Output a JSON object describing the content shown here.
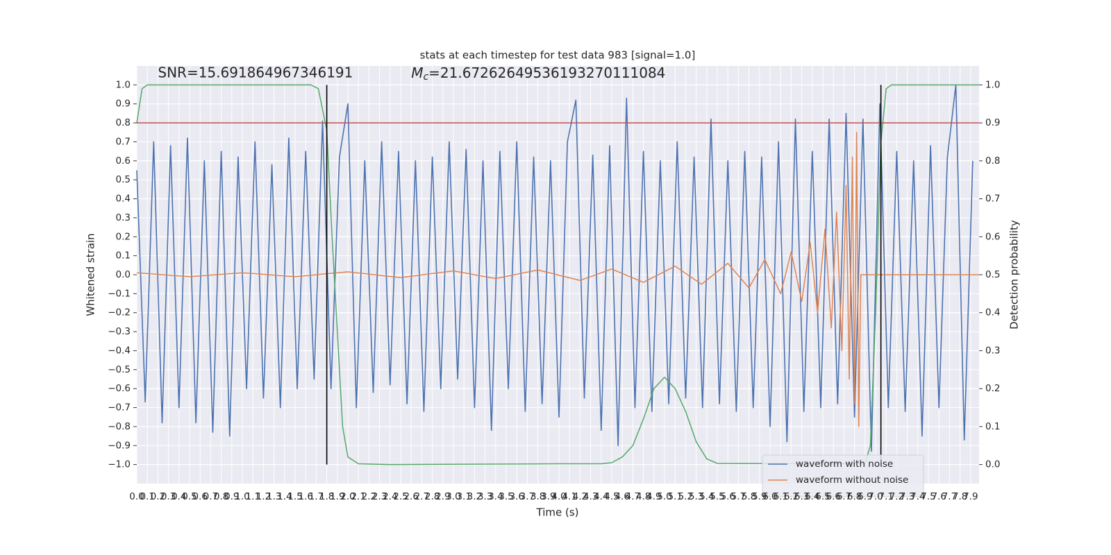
{
  "chart_data": {
    "type": "line",
    "title": "stats at each timestep for test data 983 [signal=1.0]",
    "x_label": "Time (s)",
    "y_label": "Whitened strain",
    "y2_label": "Detection probability",
    "annotations": [
      {
        "text": "SNR=15.691864967346191",
        "x": 0.2,
        "y": 1.06
      },
      {
        "symbol": "M",
        "subscript": "c",
        "text": "=21.67262649536193270111084",
        "x": 2.6,
        "y": 1.06
      }
    ],
    "xlim": [
      0,
      7.98
    ],
    "ylim": [
      -1.1,
      1.1
    ],
    "y2lim": [
      -0.05,
      1.05
    ],
    "grid": true,
    "legend": "lower right",
    "xticks": [
      {
        "value": 0,
        "label": "0.0"
      },
      0.1,
      0.2,
      0.3,
      0.4,
      0.5,
      0.6,
      0.7,
      0.8,
      0.9,
      {
        "value": 1,
        "label": "1.0"
      },
      1.1,
      1.2,
      1.3,
      1.4,
      1.5,
      1.6,
      1.7,
      1.8,
      1.9,
      {
        "value": 2,
        "label": "2.0"
      },
      2.1,
      2.2,
      2.3,
      2.4,
      2.5,
      2.6,
      2.7,
      2.8,
      2.9,
      {
        "value": 3,
        "label": "3.0"
      },
      3.1,
      3.2,
      3.3,
      3.4,
      3.5,
      3.6,
      3.7,
      3.8,
      3.9,
      {
        "value": 4,
        "label": "4.0"
      },
      4.1,
      4.2,
      4.3,
      4.4,
      4.5,
      4.6,
      4.7,
      4.8,
      4.9,
      {
        "value": 5,
        "label": "5.0"
      },
      5.1,
      5.2,
      5.3,
      5.4,
      5.5,
      5.6,
      5.7,
      5.8,
      5.9,
      {
        "value": 6,
        "label": "6.0"
      },
      6.1,
      6.2,
      6.3,
      6.4,
      6.5,
      6.6,
      6.7,
      6.8,
      6.9,
      {
        "value": 7,
        "label": "7.0"
      },
      7.1,
      7.2,
      7.3,
      7.4,
      7.5,
      7.6,
      7.7,
      7.8,
      7.9
    ],
    "yticks": [
      {
        "value": -1,
        "label": "−1.0"
      },
      {
        "value": -0.9,
        "label": "−0.9"
      },
      {
        "value": -0.8,
        "label": "−0.8"
      },
      {
        "value": -0.7,
        "label": "−0.7"
      },
      {
        "value": -0.6,
        "label": "−0.6"
      },
      {
        "value": -0.5,
        "label": "−0.5"
      },
      {
        "value": -0.4,
        "label": "−0.4"
      },
      {
        "value": -0.3,
        "label": "−0.3"
      },
      {
        "value": -0.2,
        "label": "−0.2"
      },
      {
        "value": -0.1,
        "label": "−0.1"
      },
      {
        "value": 0,
        "label": "0.0"
      },
      0.1,
      0.2,
      0.3,
      0.4,
      0.5,
      0.6,
      0.7,
      0.8,
      0.9,
      {
        "value": 1,
        "label": "1.0"
      }
    ],
    "y2ticks": [
      {
        "value": 0,
        "label": "0.0"
      },
      0.1,
      0.2,
      0.3,
      0.4,
      0.5,
      0.6,
      0.7,
      0.8,
      0.9,
      {
        "value": 1,
        "label": "1.0"
      }
    ],
    "hline": {
      "y": 0.8,
      "color": "#c44e52"
    },
    "vlines": {
      "x": [
        1.8,
        7.05
      ],
      "ymin": -1,
      "ymax": 1,
      "color": "#000000"
    },
    "series": [
      {
        "name": "waveform with noise",
        "color": "#4c72b0",
        "x": [
          0,
          0.08,
          0.16,
          0.24,
          0.32,
          0.4,
          0.48,
          0.56,
          0.64,
          0.72,
          0.8,
          0.88,
          0.96,
          1.04,
          1.12,
          1.2,
          1.28,
          1.36,
          1.44,
          1.52,
          1.6,
          1.68,
          1.76,
          1.84,
          1.92,
          2,
          2.08,
          2.16,
          2.24,
          2.32,
          2.4,
          2.48,
          2.56,
          2.64,
          2.72,
          2.8,
          2.88,
          2.96,
          3.04,
          3.12,
          3.2,
          3.28,
          3.36,
          3.44,
          3.52,
          3.6,
          3.68,
          3.76,
          3.84,
          3.92,
          4,
          4.08,
          4.16,
          4.24,
          4.32,
          4.4,
          4.48,
          4.56,
          4.64,
          4.72,
          4.8,
          4.88,
          4.96,
          5.04,
          5.12,
          5.2,
          5.28,
          5.36,
          5.44,
          5.52,
          5.6,
          5.68,
          5.76,
          5.84,
          5.92,
          6,
          6.08,
          6.16,
          6.24,
          6.32,
          6.4,
          6.48,
          6.56,
          6.64,
          6.72,
          6.8,
          6.88,
          6.96,
          7.04,
          7.12,
          7.2,
          7.28,
          7.36,
          7.44,
          7.52,
          7.6,
          7.68,
          7.76,
          7.84,
          7.92
        ],
        "values": [
          0.55,
          -0.67,
          0.7,
          -0.78,
          0.68,
          -0.7,
          0.72,
          -0.78,
          0.6,
          -0.83,
          0.65,
          -0.85,
          0.62,
          -0.6,
          0.7,
          -0.65,
          0.58,
          -0.7,
          0.72,
          -0.6,
          0.65,
          -0.55,
          0.81,
          -0.6,
          0.62,
          0.9,
          -0.7,
          0.6,
          -0.62,
          0.7,
          -0.58,
          0.65,
          -0.68,
          0.6,
          -0.72,
          0.62,
          -0.6,
          0.7,
          -0.55,
          0.66,
          -0.7,
          0.6,
          -0.82,
          0.65,
          -0.6,
          0.7,
          -0.72,
          0.62,
          -0.68,
          0.6,
          -0.75,
          0.7,
          0.92,
          -0.65,
          0.63,
          -0.82,
          0.68,
          -0.9,
          0.93,
          -0.7,
          0.65,
          -0.72,
          0.6,
          -0.68,
          0.7,
          -0.65,
          0.62,
          -0.7,
          0.82,
          -0.68,
          0.6,
          -0.72,
          0.65,
          -0.7,
          0.62,
          -0.8,
          0.7,
          -0.88,
          0.82,
          -0.72,
          0.65,
          -0.7,
          0.82,
          -0.68,
          0.85,
          -0.75,
          0.82,
          -0.93,
          0.9,
          -0.7,
          0.65,
          -0.72,
          0.6,
          -0.85,
          0.68,
          -0.7,
          0.62,
          1.0,
          -0.87,
          0.6
        ]
      },
      {
        "name": "waveform without noise",
        "color": "#dd8452",
        "x": [
          0,
          0.5,
          1,
          1.5,
          2,
          2.5,
          3,
          3.4,
          3.8,
          4.2,
          4.5,
          4.8,
          5.1,
          5.35,
          5.6,
          5.8,
          5.95,
          6.1,
          6.2,
          6.3,
          6.38,
          6.45,
          6.52,
          6.58,
          6.63,
          6.68,
          6.72,
          6.75,
          6.78,
          6.8,
          6.82,
          6.84,
          6.86,
          7.98
        ],
        "values": [
          0.01,
          -0.01,
          0.01,
          -0.01,
          0.015,
          -0.015,
          0.02,
          -0.02,
          0.025,
          -0.03,
          0.03,
          -0.04,
          0.045,
          -0.05,
          0.06,
          -0.07,
          0.08,
          -0.1,
          0.12,
          -0.14,
          0.17,
          -0.2,
          0.24,
          -0.28,
          0.33,
          -0.4,
          0.47,
          -0.55,
          0.62,
          -0.68,
          0.75,
          -0.8,
          0,
          0
        ]
      },
      {
        "color": "#55a868",
        "axis": "y2",
        "x": [
          0,
          0.05,
          0.1,
          0.5,
          1.5,
          1.65,
          1.72,
          1.8,
          1.85,
          1.9,
          1.95,
          2,
          2.1,
          2.4,
          4,
          4.4,
          4.5,
          4.6,
          4.7,
          4.8,
          4.9,
          5,
          5.1,
          5.2,
          5.3,
          5.4,
          5.5,
          6.5,
          6.9,
          6.95,
          7,
          7.05,
          7.1,
          7.15,
          7.98
        ],
        "values": [
          0.9,
          0.99,
          1,
          1,
          1,
          1,
          0.99,
          0.88,
          0.6,
          0.35,
          0.1,
          0.02,
          0.002,
          0,
          0.002,
          0.002,
          0.005,
          0.02,
          0.05,
          0.12,
          0.2,
          0.23,
          0.2,
          0.14,
          0.06,
          0.015,
          0.003,
          0.002,
          0.003,
          0.05,
          0.4,
          0.85,
          0.99,
          1,
          1
        ]
      }
    ]
  }
}
